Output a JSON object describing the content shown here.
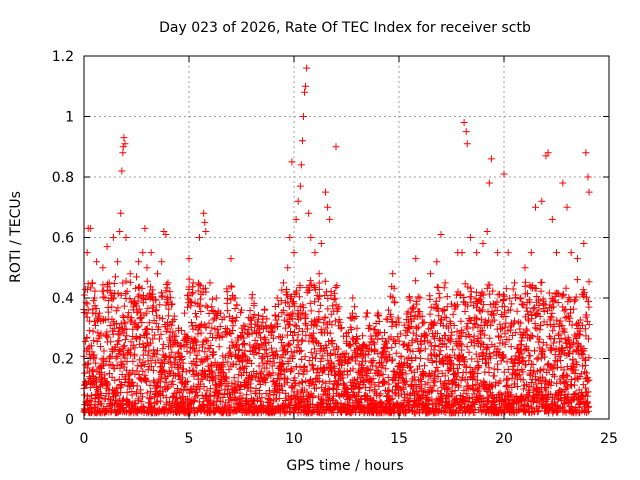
{
  "chart_data": {
    "type": "scatter",
    "title": "Day 023 of 2026, Rate Of TEC Index for receiver sctb",
    "xlabel": "GPS time / hours",
    "ylabel": "ROTI / TECUs",
    "xlim": [
      0,
      25
    ],
    "ylim": [
      0,
      1.2
    ],
    "x_ticks": [
      0,
      5,
      10,
      15,
      20,
      25
    ],
    "x_tick_labels": [
      "0",
      "5",
      "10",
      "15",
      "20",
      "25"
    ],
    "y_ticks": [
      0,
      0.2,
      0.4,
      0.6,
      0.8,
      1.0,
      1.2
    ],
    "y_tick_labels": [
      "0",
      "0.2",
      "0.4",
      "0.6",
      "0.8",
      "1",
      "1.2"
    ],
    "grid": true,
    "marker": "+",
    "series": [
      {
        "color": "#ff0000",
        "points": [
          [
            0.02,
            0.41
          ],
          [
            0.1,
            0.35
          ],
          [
            0.15,
            0.55
          ],
          [
            0.2,
            0.63
          ],
          [
            0.3,
            0.63
          ],
          [
            0.4,
            0.45
          ],
          [
            0.5,
            0.4
          ],
          [
            0.6,
            0.52
          ],
          [
            0.7,
            0.33
          ],
          [
            0.9,
            0.5
          ],
          [
            1.0,
            0.4
          ],
          [
            1.1,
            0.57
          ],
          [
            1.2,
            0.45
          ],
          [
            1.4,
            0.6
          ],
          [
            1.5,
            0.47
          ],
          [
            1.6,
            0.52
          ],
          [
            1.7,
            0.62
          ],
          [
            1.75,
            0.68
          ],
          [
            1.8,
            0.82
          ],
          [
            1.85,
            0.88
          ],
          [
            1.87,
            0.9
          ],
          [
            1.9,
            0.93
          ],
          [
            1.95,
            0.91
          ],
          [
            2.0,
            0.6
          ],
          [
            2.2,
            0.48
          ],
          [
            2.5,
            0.47
          ],
          [
            2.6,
            0.52
          ],
          [
            2.8,
            0.55
          ],
          [
            2.9,
            0.63
          ],
          [
            3.0,
            0.5
          ],
          [
            3.2,
            0.55
          ],
          [
            3.5,
            0.48
          ],
          [
            3.7,
            0.52
          ],
          [
            3.8,
            0.62
          ],
          [
            3.9,
            0.61
          ],
          [
            4.0,
            0.45
          ],
          [
            4.2,
            0.38
          ],
          [
            4.5,
            0.3
          ],
          [
            4.8,
            0.28
          ],
          [
            5.0,
            0.53
          ],
          [
            5.2,
            0.45
          ],
          [
            5.5,
            0.6
          ],
          [
            5.7,
            0.68
          ],
          [
            5.75,
            0.65
          ],
          [
            5.8,
            0.62
          ],
          [
            6.0,
            0.45
          ],
          [
            6.3,
            0.4
          ],
          [
            6.5,
            0.35
          ],
          [
            6.8,
            0.43
          ],
          [
            7.0,
            0.53
          ],
          [
            7.2,
            0.4
          ],
          [
            7.5,
            0.36
          ],
          [
            7.8,
            0.28
          ],
          [
            8.0,
            0.4
          ],
          [
            8.3,
            0.33
          ],
          [
            8.6,
            0.36
          ],
          [
            8.9,
            0.3
          ],
          [
            9.2,
            0.4
          ],
          [
            9.5,
            0.45
          ],
          [
            9.7,
            0.5
          ],
          [
            9.8,
            0.6
          ],
          [
            9.9,
            0.85
          ],
          [
            10.0,
            0.55
          ],
          [
            10.1,
            0.66
          ],
          [
            10.2,
            0.72
          ],
          [
            10.3,
            0.77
          ],
          [
            10.35,
            0.84
          ],
          [
            10.4,
            0.92
          ],
          [
            10.45,
            1.0
          ],
          [
            10.5,
            1.08
          ],
          [
            10.55,
            1.1
          ],
          [
            10.6,
            1.16
          ],
          [
            10.7,
            0.68
          ],
          [
            10.8,
            0.6
          ],
          [
            11.0,
            0.55
          ],
          [
            11.2,
            0.48
          ],
          [
            11.3,
            0.58
          ],
          [
            11.5,
            0.75
          ],
          [
            11.6,
            0.7
          ],
          [
            11.7,
            0.66
          ],
          [
            12.0,
            0.9
          ],
          [
            12.2,
            0.32
          ],
          [
            12.5,
            0.25
          ],
          [
            12.8,
            0.4
          ],
          [
            13.0,
            0.3
          ],
          [
            13.5,
            0.35
          ],
          [
            14.0,
            0.35
          ],
          [
            14.5,
            0.36
          ],
          [
            14.7,
            0.48
          ],
          [
            15.0,
            0.32
          ],
          [
            15.5,
            0.4
          ],
          [
            15.8,
            0.53
          ],
          [
            16.0,
            0.4
          ],
          [
            16.2,
            0.32
          ],
          [
            16.5,
            0.48
          ],
          [
            16.8,
            0.52
          ],
          [
            17.0,
            0.61
          ],
          [
            17.2,
            0.45
          ],
          [
            17.5,
            0.38
          ],
          [
            17.8,
            0.55
          ],
          [
            18.0,
            0.55
          ],
          [
            18.1,
            0.98
          ],
          [
            18.2,
            0.95
          ],
          [
            18.25,
            0.91
          ],
          [
            18.4,
            0.6
          ],
          [
            18.7,
            0.55
          ],
          [
            19.0,
            0.58
          ],
          [
            19.2,
            0.62
          ],
          [
            19.3,
            0.78
          ],
          [
            19.4,
            0.86
          ],
          [
            19.7,
            0.55
          ],
          [
            20.0,
            0.81
          ],
          [
            20.2,
            0.55
          ],
          [
            20.5,
            0.45
          ],
          [
            20.8,
            0.4
          ],
          [
            21.0,
            0.5
          ],
          [
            21.3,
            0.55
          ],
          [
            21.5,
            0.7
          ],
          [
            21.8,
            0.72
          ],
          [
            22.0,
            0.87
          ],
          [
            22.1,
            0.88
          ],
          [
            22.3,
            0.66
          ],
          [
            22.5,
            0.55
          ],
          [
            22.8,
            0.78
          ],
          [
            23.0,
            0.7
          ],
          [
            23.2,
            0.55
          ],
          [
            23.5,
            0.53
          ],
          [
            23.8,
            0.58
          ],
          [
            23.9,
            0.88
          ],
          [
            24.0,
            0.8
          ],
          [
            24.05,
            0.75
          ]
        ]
      }
    ]
  }
}
